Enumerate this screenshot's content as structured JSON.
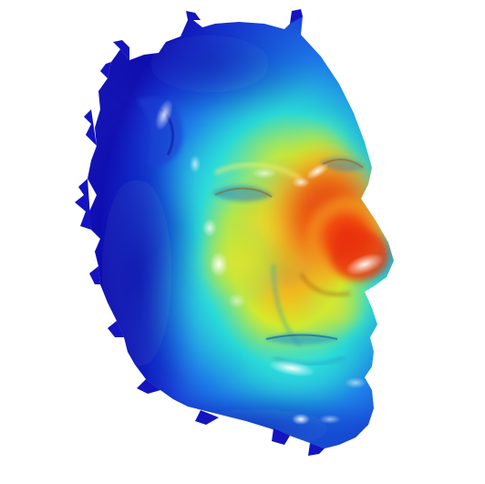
{
  "image": {
    "subject": "face-depth-heatmap",
    "background": "#ffffff",
    "colormap": {
      "low": "#1414c8",
      "low_mid": "#1e64e6",
      "mid": "#23d2dc",
      "mid_high": "#d2e628",
      "high": "#f0b41e",
      "peak": "#e61e0a"
    }
  }
}
